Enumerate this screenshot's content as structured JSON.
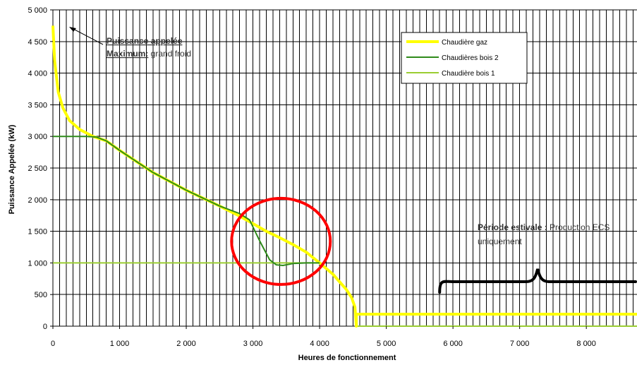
{
  "chart_data": {
    "type": "line",
    "xlabel": "Heures de fonctionnement",
    "ylabel": "Puissance Appelée (kW)",
    "xlim": [
      0,
      8760
    ],
    "ylim": [
      0,
      5000
    ],
    "xticks": [
      0,
      1000,
      2000,
      3000,
      4000,
      5000,
      6000,
      7000,
      8000
    ],
    "xtick_labels": [
      "0",
      "1 000",
      "2 000",
      "3 000",
      "4 000",
      "5 000",
      "6 000",
      "7 000",
      "8 000"
    ],
    "yticks": [
      0,
      500,
      1000,
      1500,
      2000,
      2500,
      3000,
      3500,
      4000,
      4500,
      5000
    ],
    "ytick_labels": [
      "0",
      "500",
      "1 000",
      "1 500",
      "2 000",
      "2 500",
      "3 000",
      "3 500",
      "4 000",
      "4 500",
      "5 000"
    ],
    "grid": true,
    "legend_position": "top-right",
    "series": [
      {
        "name": "Chaudière gaz",
        "color": "#ffff00",
        "x": [
          0,
          25,
          80,
          150,
          250,
          400,
          600,
          800,
          1000,
          1500,
          2000,
          2500,
          2800,
          3000,
          3200,
          3400,
          3600,
          3800,
          4000,
          4200,
          4400,
          4480,
          4530,
          4550,
          4550,
          8760
        ],
        "y": [
          4750,
          4200,
          3700,
          3450,
          3250,
          3110,
          3000,
          2930,
          2780,
          2430,
          2150,
          1900,
          1740,
          1620,
          1500,
          1400,
          1290,
          1170,
          1000,
          820,
          580,
          450,
          300,
          0,
          190,
          190
        ]
      },
      {
        "name": "Chaudières bois 2",
        "color": "#2e8b1a",
        "x": [
          0,
          500,
          650,
          800,
          1000,
          1500,
          2000,
          2500,
          2800,
          2950,
          3100,
          3250,
          3350,
          3450,
          3600,
          3800,
          4000
        ],
        "y": [
          3000,
          3000,
          2990,
          2930,
          2780,
          2430,
          2150,
          1900,
          1780,
          1680,
          1350,
          1050,
          970,
          960,
          990,
          1000,
          1000
        ]
      },
      {
        "name": "Chaudière bois 1",
        "color": "#9acd32",
        "x": [
          0,
          4000,
          4200,
          4400,
          4480,
          4530,
          4550,
          8760
        ],
        "y": [
          1000,
          1000,
          820,
          580,
          450,
          300,
          0,
          0
        ]
      }
    ],
    "annotations": {
      "peak": {
        "title": "Puissance appelée",
        "line2_bold": "Maximum:",
        "line2_rest": " grand froid"
      },
      "summer": {
        "line1_bold": "Période estivale :",
        "line1_rest": " Production ECS",
        "line2": "uniquement"
      },
      "circle_center": [
        3420,
        1340
      ],
      "brace_range": [
        5800,
        8760
      ]
    }
  }
}
